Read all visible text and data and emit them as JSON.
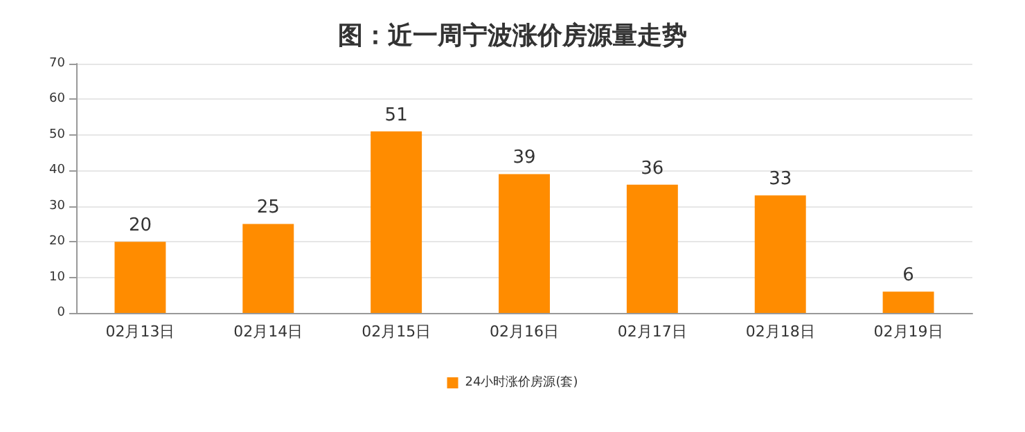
{
  "chart_data": {
    "type": "bar",
    "title": "图：近一周宁波涨价房源量走势",
    "categories": [
      "02月13日",
      "02月14日",
      "02月15日",
      "02月16日",
      "02月17日",
      "02月18日",
      "02月19日"
    ],
    "series": [
      {
        "name": "24小时涨价房源(套)",
        "color": "#ff8c00",
        "values": [
          20,
          25,
          51,
          39,
          36,
          33,
          6
        ]
      }
    ],
    "ylim": [
      0,
      70
    ],
    "yticks": [
      0,
      10,
      20,
      30,
      40,
      50,
      60,
      70
    ],
    "grid": "y",
    "legend": "bottom",
    "data_labels": true
  }
}
